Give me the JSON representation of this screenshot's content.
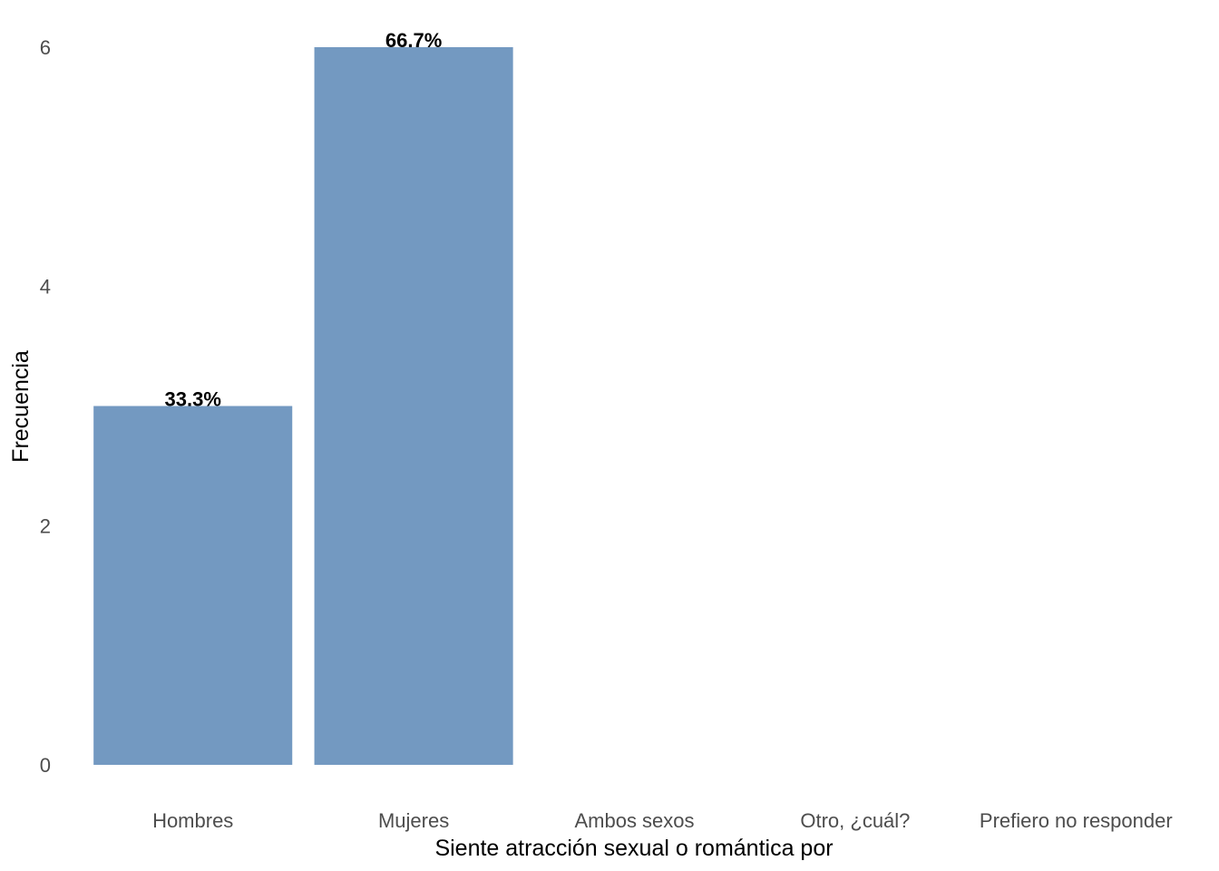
{
  "chart_data": {
    "type": "bar",
    "categories": [
      "Hombres",
      "Mujeres",
      "Ambos sexos",
      "Otro, ¿cuál?",
      "Prefiero no responder"
    ],
    "values": [
      3,
      6,
      0,
      0,
      0
    ],
    "data_labels": [
      "33.3%",
      "66.7%",
      "",
      "",
      ""
    ],
    "xlabel": "Siente atracción sexual o romántica por",
    "ylabel": "Frecuencia",
    "ylim": [
      0,
      6
    ],
    "yticks": [
      0,
      2,
      4,
      6
    ],
    "ytick_labels": [
      "0",
      "2",
      "4",
      "6"
    ],
    "grid": false,
    "bar_color": "#7399c1"
  }
}
